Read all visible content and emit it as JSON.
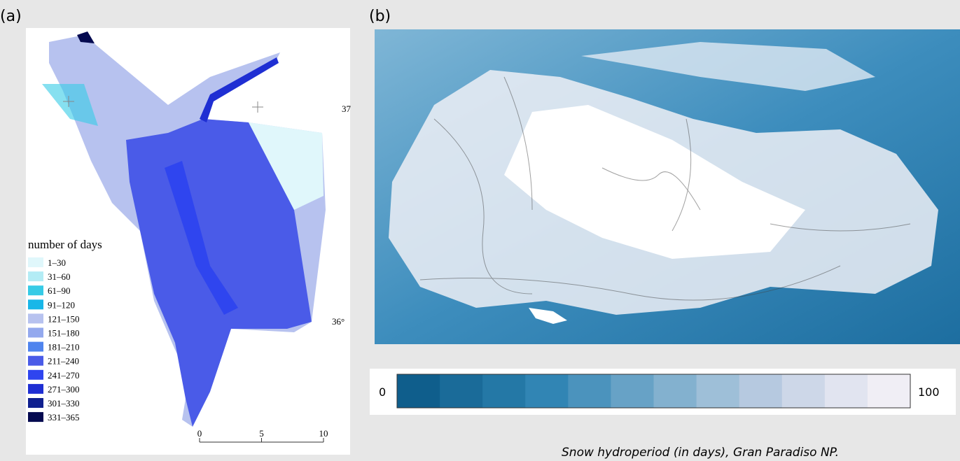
{
  "panel_a": {
    "label": "(a)",
    "legend": {
      "title": "number of days",
      "items": [
        {
          "label": "1–30",
          "color": "#e0f7fb"
        },
        {
          "label": "31–60",
          "color": "#b3ecf5"
        },
        {
          "label": "61–90",
          "color": "#36cbe6"
        },
        {
          "label": "91–120",
          "color": "#19b7e8"
        },
        {
          "label": "121–150",
          "color": "#b7c2ef"
        },
        {
          "label": "151–180",
          "color": "#94a9ee"
        },
        {
          "label": "181–210",
          "color": "#4f84ee"
        },
        {
          "label": "211–240",
          "color": "#4a5be8"
        },
        {
          "label": "241–270",
          "color": "#2f45ef"
        },
        {
          "label": "271–300",
          "color": "#1f2fd3"
        },
        {
          "label": "301–330",
          "color": "#10208f"
        },
        {
          "label": "331–365",
          "color": "#050a50"
        }
      ]
    },
    "coordinates": [
      "37",
      "36°"
    ],
    "scale_bar": {
      "ticks": [
        0,
        5,
        10
      ]
    }
  },
  "panel_b": {
    "label": "(b)",
    "colorbar": {
      "min": 0,
      "max": 100,
      "colors": [
        "#0f5e8c",
        "#1a6b99",
        "#2478a6",
        "#3185b4",
        "#4b93bd",
        "#67a2c6",
        "#83b1cf",
        "#9ebfd8",
        "#b6c9e0",
        "#cdd7e8",
        "#e1e4f0",
        "#f0eef5"
      ]
    },
    "caption": "Snow hydroperiod (in days), Gran Paradiso NP."
  }
}
